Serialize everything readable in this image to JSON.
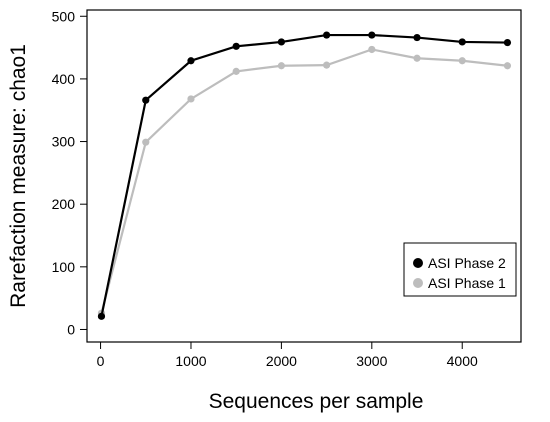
{
  "chart_data": {
    "type": "line",
    "title": "",
    "xlabel": "Sequences per sample",
    "ylabel": "Rarefaction measure: chao1",
    "xlim": [
      -150,
      4650
    ],
    "ylim": [
      -20,
      510
    ],
    "xticks": [
      0,
      1000,
      2000,
      3000,
      4000
    ],
    "yticks": [
      0,
      100,
      200,
      300,
      400,
      500
    ],
    "x": [
      10,
      500,
      1000,
      1500,
      2000,
      2500,
      3000,
      3500,
      4000,
      4500
    ],
    "series": [
      {
        "name": "ASI Phase 2",
        "color": "#000000",
        "values": [
          21,
          366,
          429,
          452,
          459,
          470,
          470,
          466,
          459,
          458
        ]
      },
      {
        "name": "ASI Phase 1",
        "color": "#bdbdbd",
        "values": [
          26,
          299,
          368,
          412,
          421,
          422,
          447,
          433,
          429,
          421
        ]
      }
    ],
    "legend_position": "bottom-right",
    "grid": false
  }
}
